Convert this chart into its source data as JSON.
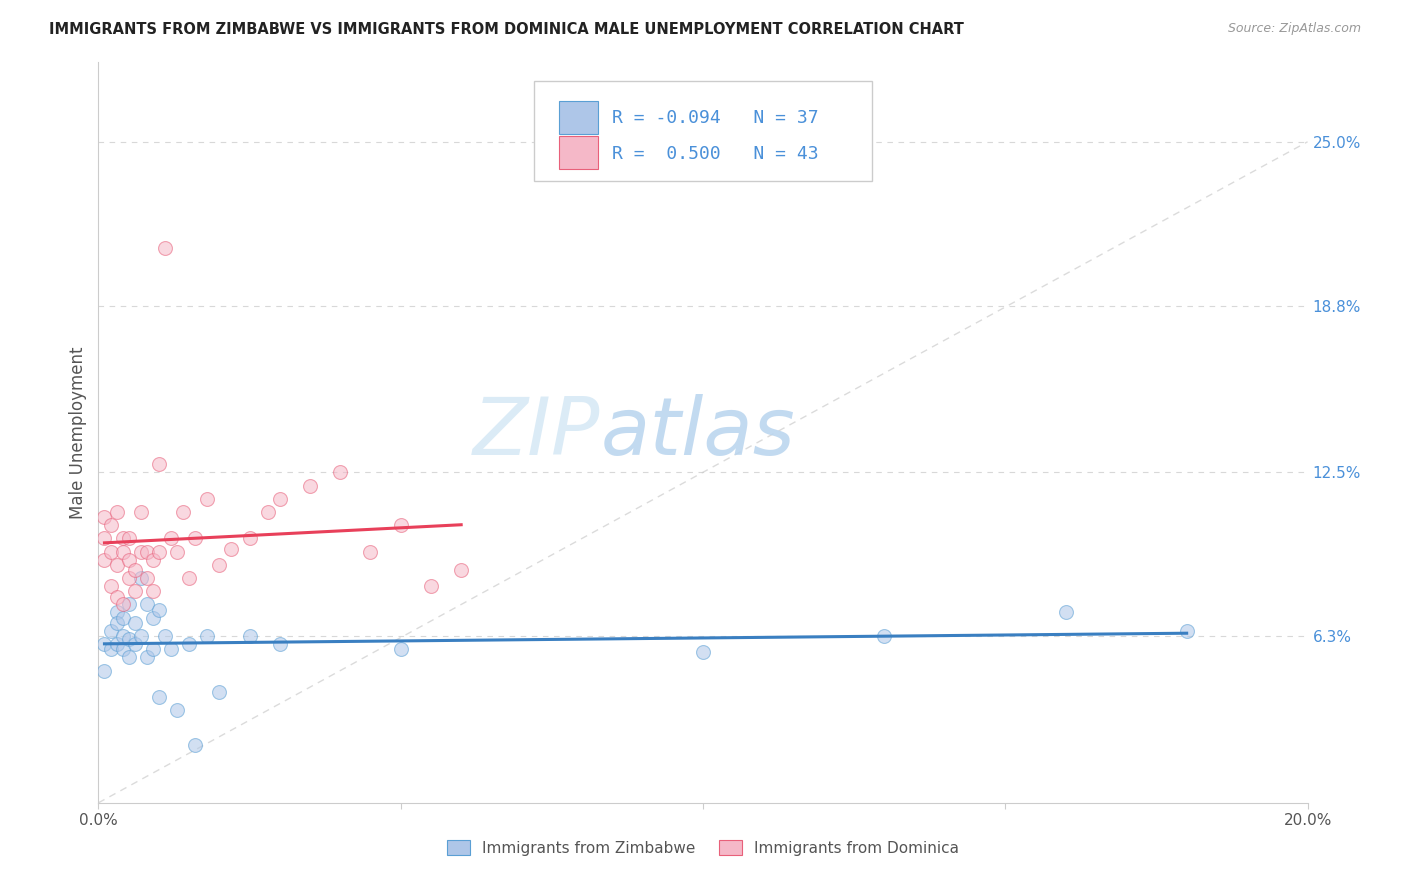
{
  "title": "IMMIGRANTS FROM ZIMBABWE VS IMMIGRANTS FROM DOMINICA MALE UNEMPLOYMENT CORRELATION CHART",
  "source": "Source: ZipAtlas.com",
  "ylabel": "Male Unemployment",
  "x_min": 0.0,
  "x_max": 0.2,
  "y_min": 0.0,
  "y_max": 0.28,
  "y_ticks_right": [
    0.063,
    0.125,
    0.188,
    0.25
  ],
  "y_tick_labels_right": [
    "6.3%",
    "12.5%",
    "18.8%",
    "25.0%"
  ],
  "legend_r1": "-0.094",
  "legend_n1": "37",
  "legend_r2": "0.500",
  "legend_n2": "43",
  "color_zimbabwe_fill": "#aec6e8",
  "color_zimbabwe_edge": "#5a9fd4",
  "color_dominica_fill": "#f5b8c8",
  "color_dominica_edge": "#e8607a",
  "color_trend_zimbabwe": "#3a7fc1",
  "color_trend_dominica": "#e8405a",
  "color_diagonal": "#cccccc",
  "color_grid": "#d8d8d8",
  "color_title": "#222222",
  "color_source": "#999999",
  "color_axis_right": "#4a90d9",
  "color_rn_text": "#4a90d9",
  "watermark_zip": "ZIP",
  "watermark_atlas": "atlas",
  "marker_size": 100,
  "marker_alpha": 0.55,
  "trend_linewidth": 2.2,
  "zimbabwe_x": [
    0.001,
    0.001,
    0.002,
    0.002,
    0.003,
    0.003,
    0.003,
    0.004,
    0.004,
    0.004,
    0.005,
    0.005,
    0.005,
    0.006,
    0.006,
    0.007,
    0.007,
    0.008,
    0.008,
    0.009,
    0.009,
    0.01,
    0.01,
    0.011,
    0.012,
    0.013,
    0.015,
    0.016,
    0.018,
    0.02,
    0.025,
    0.03,
    0.05,
    0.1,
    0.13,
    0.16,
    0.18
  ],
  "zimbabwe_y": [
    0.06,
    0.05,
    0.065,
    0.058,
    0.072,
    0.068,
    0.06,
    0.063,
    0.058,
    0.07,
    0.075,
    0.062,
    0.055,
    0.068,
    0.06,
    0.085,
    0.063,
    0.075,
    0.055,
    0.07,
    0.058,
    0.073,
    0.04,
    0.063,
    0.058,
    0.035,
    0.06,
    0.022,
    0.063,
    0.042,
    0.063,
    0.06,
    0.058,
    0.057,
    0.063,
    0.072,
    0.065
  ],
  "dominica_x": [
    0.001,
    0.001,
    0.001,
    0.002,
    0.002,
    0.002,
    0.003,
    0.003,
    0.003,
    0.004,
    0.004,
    0.004,
    0.005,
    0.005,
    0.005,
    0.006,
    0.006,
    0.007,
    0.007,
    0.008,
    0.008,
    0.009,
    0.009,
    0.01,
    0.01,
    0.011,
    0.012,
    0.013,
    0.014,
    0.015,
    0.016,
    0.018,
    0.02,
    0.022,
    0.025,
    0.028,
    0.03,
    0.035,
    0.04,
    0.045,
    0.05,
    0.055,
    0.06
  ],
  "dominica_y": [
    0.1,
    0.108,
    0.092,
    0.095,
    0.082,
    0.105,
    0.09,
    0.11,
    0.078,
    0.095,
    0.1,
    0.075,
    0.092,
    0.085,
    0.1,
    0.088,
    0.08,
    0.095,
    0.11,
    0.085,
    0.095,
    0.092,
    0.08,
    0.095,
    0.128,
    0.21,
    0.1,
    0.095,
    0.11,
    0.085,
    0.1,
    0.115,
    0.09,
    0.096,
    0.1,
    0.11,
    0.115,
    0.12,
    0.125,
    0.095,
    0.105,
    0.082,
    0.088
  ]
}
